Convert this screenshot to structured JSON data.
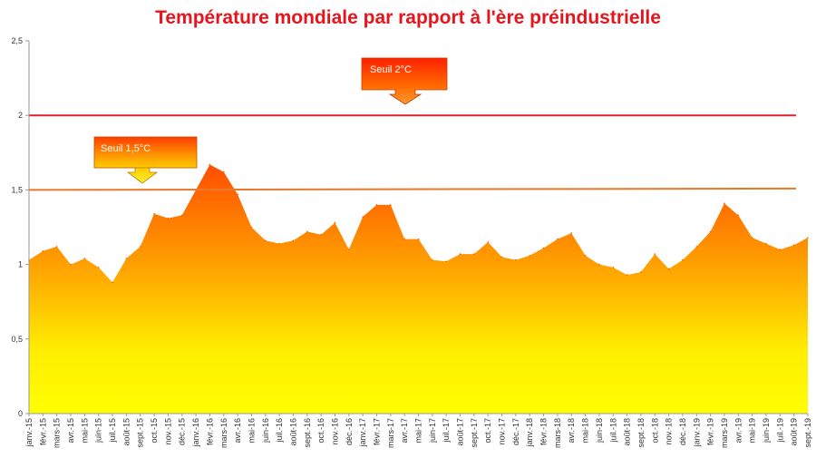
{
  "chart_data": {
    "type": "area",
    "title": "Température mondiale par rapport à l'ère préindustrielle",
    "categories": [
      "janv.-15",
      "févr.-15",
      "mars-15",
      "avr.-15",
      "mai-15",
      "juin-15",
      "juil.-15",
      "août-15",
      "sept.-15",
      "oct.-15",
      "nov.-15",
      "déc.-15",
      "janv.-16",
      "févr.-16",
      "mars-16",
      "avr.-16",
      "mai-16",
      "juin-16",
      "juil.-16",
      "août-16",
      "sept.-16",
      "oct.-16",
      "nov.-16",
      "déc.-16",
      "janv.-17",
      "févr.-17",
      "mars-17",
      "avr.-17",
      "mai-17",
      "juin-17",
      "juil.-17",
      "août-17",
      "sept.-17",
      "oct.-17",
      "nov.-17",
      "déc.-17",
      "janv.-18",
      "févr.-18",
      "mars-18",
      "avr.-18",
      "mai-18",
      "juin-18",
      "juil.-18",
      "août-18",
      "sept.-18",
      "oct.-18",
      "nov.-18",
      "déc.-18",
      "janv.-19",
      "févr.-19",
      "mars-19",
      "avr.-19",
      "mai-19",
      "juin-19",
      "juil.-19",
      "août-19",
      "sept.-19"
    ],
    "values": [
      1.03,
      1.09,
      1.12,
      1.0,
      1.04,
      0.98,
      0.88,
      1.04,
      1.12,
      1.34,
      1.31,
      1.33,
      1.5,
      1.67,
      1.62,
      1.47,
      1.25,
      1.16,
      1.14,
      1.16,
      1.22,
      1.2,
      1.28,
      1.1,
      1.32,
      1.4,
      1.4,
      1.17,
      1.17,
      1.03,
      1.02,
      1.07,
      1.07,
      1.15,
      1.05,
      1.03,
      1.06,
      1.11,
      1.17,
      1.21,
      1.06,
      1.0,
      0.98,
      0.93,
      0.95,
      1.07,
      0.97,
      1.03,
      1.12,
      1.22,
      1.41,
      1.33,
      1.18,
      1.14,
      1.1,
      1.13,
      1.18
    ],
    "ylim": [
      0,
      2.5
    ],
    "yticks": [
      "0",
      "0,5",
      "1",
      "1,5",
      "2",
      "2,5"
    ],
    "reference_lines": [
      {
        "value": 1.5,
        "label": "Seuil 1,5°C",
        "color": "#e8782a"
      },
      {
        "value": 2.0,
        "label": "Seuil 2°C",
        "color": "#e0202a"
      }
    ],
    "legend": "none",
    "grid": false
  },
  "colors": {
    "title": "#e8141c",
    "fill_top": "#ff5a00",
    "fill_bottom": "#ffff00"
  }
}
